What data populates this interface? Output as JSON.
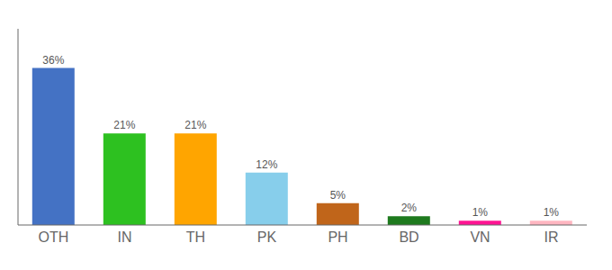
{
  "chart_data": {
    "type": "bar",
    "categories": [
      "OTH",
      "IN",
      "TH",
      "PK",
      "PH",
      "BD",
      "VN",
      "IR"
    ],
    "values": [
      36,
      21,
      21,
      12,
      5,
      2,
      1,
      1
    ],
    "value_labels": [
      "36%",
      "21%",
      "21%",
      "12%",
      "5%",
      "2%",
      "1%",
      "1%"
    ],
    "colors": [
      "#4472C4",
      "#2DC120",
      "#FFA500",
      "#87CEEB",
      "#C0651A",
      "#1E7A1E",
      "#FF1493",
      "#FFB6C1"
    ],
    "ylim": [
      0,
      45
    ],
    "data_labels": true,
    "tick_labels": "x"
  }
}
